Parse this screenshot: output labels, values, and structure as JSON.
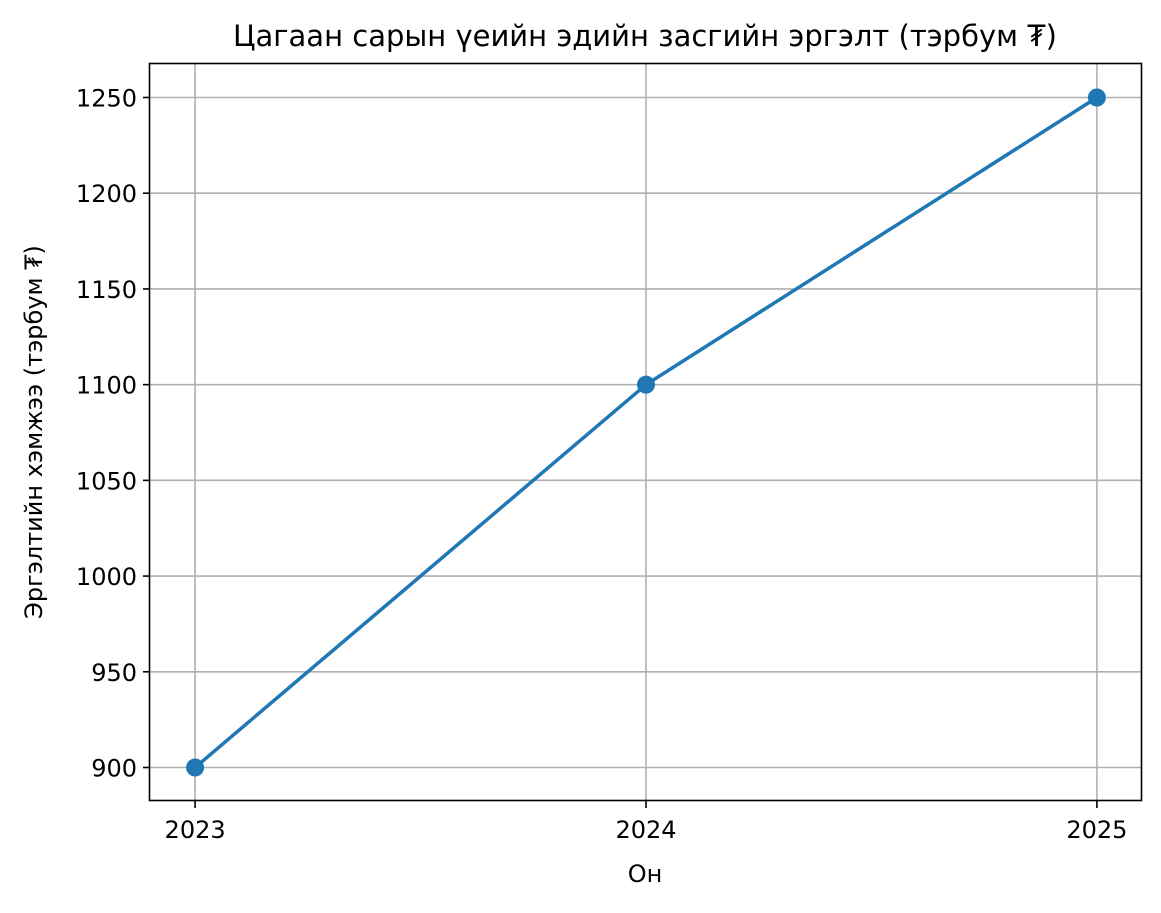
{
  "chart_data": {
    "type": "line",
    "title": "Цагаан сарын үеийн эдийн засгийн эргэлт (тэрбум ₮)",
    "xlabel": "Он",
    "ylabel": "Эргэлтийн хэмжээ (тэрбум ₮)",
    "x": [
      2023,
      2024,
      2025
    ],
    "x_tick_labels": [
      "2023",
      "2024",
      "2025"
    ],
    "series": [
      {
        "values": [
          900,
          1100,
          1250
        ],
        "color": "#1f77b4",
        "marker": "circle"
      }
    ],
    "y_ticks": [
      900,
      950,
      1000,
      1050,
      1100,
      1150,
      1200,
      1250
    ],
    "y_tick_labels": [
      "900",
      "950",
      "1000",
      "1050",
      "1100",
      "1150",
      "1200",
      "1250"
    ],
    "xlim": [
      2022.9,
      2025.1
    ],
    "ylim": [
      882.5,
      1267.5
    ],
    "grid": true
  }
}
